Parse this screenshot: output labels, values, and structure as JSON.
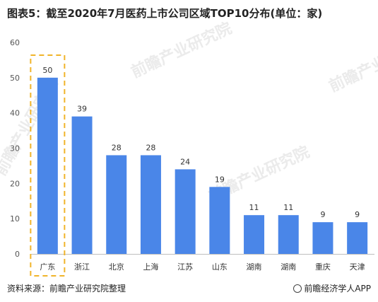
{
  "title": "图表5：截至2020年7月医药上市公司区域TOP10分布(单位：家)",
  "source": "资料来源：前瞻产业研究院整理",
  "brand": "前瞻经济学人APP",
  "watermark": "前瞻产业研究院",
  "colors": {
    "bar": "#4a86e8",
    "highlight_box": "#f0b429",
    "axis": "#bfbfbf"
  },
  "chart_data": {
    "type": "bar",
    "categories": [
      "广东",
      "浙江",
      "北京",
      "上海",
      "江苏",
      "山东",
      "湖南",
      "湖南",
      "重庆",
      "天津"
    ],
    "values": [
      50,
      39,
      28,
      28,
      24,
      19,
      11,
      11,
      9,
      9
    ],
    "ylim": [
      0,
      60
    ],
    "yticks": [
      0,
      10,
      20,
      30,
      40,
      50,
      60
    ],
    "grid": false,
    "highlight_category_index": 0
  }
}
